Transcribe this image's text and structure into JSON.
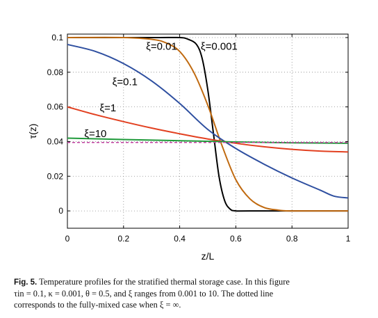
{
  "chart_data": {
    "type": "line",
    "xlabel": "z/L",
    "ylabel": "τ(z)",
    "xlim": [
      0,
      1
    ],
    "ylim": [
      -0.01,
      0.102
    ],
    "x_ticks": [
      "0",
      "0.2",
      "0.4",
      "0.6",
      "0.8",
      "1"
    ],
    "y_ticks": [
      "0",
      "0.02",
      "0.04",
      "0.06",
      "0.08",
      "0.1"
    ],
    "grid": true,
    "series": [
      {
        "name": "ξ=0.001",
        "color": "#000000",
        "x": [
          0,
          0.3,
          0.4,
          0.43,
          0.46,
          0.48,
          0.5,
          0.52,
          0.54,
          0.56,
          0.58,
          0.6,
          0.65,
          1.0
        ],
        "y": [
          0.1,
          0.1,
          0.1,
          0.099,
          0.096,
          0.088,
          0.07,
          0.045,
          0.02,
          0.006,
          0.001,
          0.0,
          0.0,
          0.0
        ]
      },
      {
        "name": "ξ=0.01",
        "color": "#c06a10",
        "x": [
          0,
          0.2,
          0.3,
          0.35,
          0.4,
          0.45,
          0.5,
          0.55,
          0.6,
          0.65,
          0.7,
          0.75,
          0.8,
          1.0
        ],
        "y": [
          0.1,
          0.1,
          0.099,
          0.097,
          0.092,
          0.08,
          0.061,
          0.038,
          0.018,
          0.007,
          0.002,
          0.0005,
          0.0,
          0.0
        ]
      },
      {
        "name": "ξ=0.1",
        "color": "#2e4fa0",
        "x": [
          0,
          0.1,
          0.2,
          0.3,
          0.4,
          0.5,
          0.6,
          0.7,
          0.8,
          0.9,
          0.95,
          1.0
        ],
        "y": [
          0.096,
          0.092,
          0.085,
          0.075,
          0.062,
          0.047,
          0.036,
          0.027,
          0.019,
          0.012,
          0.0085,
          0.0075
        ]
      },
      {
        "name": "ξ=1",
        "color": "#e24020",
        "x": [
          0,
          0.1,
          0.2,
          0.3,
          0.4,
          0.5,
          0.6,
          0.7,
          0.8,
          0.9,
          1.0
        ],
        "y": [
          0.06,
          0.0555,
          0.0515,
          0.0478,
          0.0445,
          0.0415,
          0.039,
          0.037,
          0.0355,
          0.0345,
          0.034
        ]
      },
      {
        "name": "ξ=10",
        "color": "#1f9a3a",
        "x": [
          0,
          0.2,
          0.4,
          0.6,
          0.8,
          1.0
        ],
        "y": [
          0.042,
          0.0412,
          0.0405,
          0.0398,
          0.0393,
          0.039
        ]
      },
      {
        "name": "",
        "color": "#c040a0",
        "dashed": true,
        "x": [
          0,
          1.0
        ],
        "y": [
          0.0395,
          0.0395
        ]
      }
    ],
    "annotations": [
      {
        "text": "ξ=0.01",
        "x": 0.28,
        "y": 0.093
      },
      {
        "text": "ξ=0.001",
        "x": 0.475,
        "y": 0.093
      },
      {
        "text": "ξ=0.1",
        "x": 0.16,
        "y": 0.0725
      },
      {
        "text": "ξ=1",
        "x": 0.115,
        "y": 0.0575
      },
      {
        "text": "ξ=10",
        "x": 0.06,
        "y": 0.0425
      }
    ]
  },
  "caption": {
    "label": "Fig. 5.",
    "line1": " Temperature profiles for the stratified thermal storage case. In this figure",
    "line2": "τin = 0.1, κ = 0.001, θ = 0.5, and ξ ranges from 0.001 to 10. The dotted line",
    "line3": "corresponds to the fully-mixed case when ξ = ∞."
  }
}
